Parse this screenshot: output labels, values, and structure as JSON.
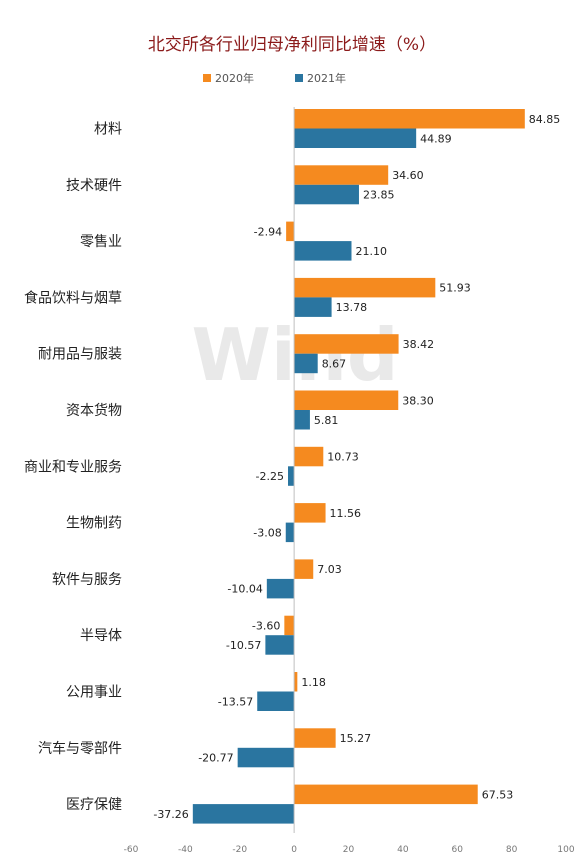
{
  "chart_data": {
    "type": "bar",
    "orientation": "horizontal",
    "title": "北交所各行业归母净利同比增速（%）",
    "watermark": "Wind",
    "legend_position": "top",
    "categories": [
      "材料",
      "技术硬件",
      "零售业",
      "食品饮料与烟草",
      "耐用品与服装",
      "资本货物",
      "商业和专业服务",
      "生物制药",
      "软件与服务",
      "半导体",
      "公用事业",
      "汽车与零部件",
      "医疗保健"
    ],
    "series": [
      {
        "name": "2020年",
        "color": "#f58a1f",
        "values": [
          84.85,
          34.6,
          -2.94,
          51.93,
          38.42,
          38.3,
          10.73,
          11.56,
          7.03,
          -3.6,
          1.18,
          15.27,
          67.53
        ],
        "labels": [
          "84.85",
          "34.60",
          "-2.94",
          "51.93",
          "38.42",
          "38.30",
          "10.73",
          "11.56",
          "7.03",
          "-3.60",
          "1.18",
          "15.27",
          "67.53"
        ]
      },
      {
        "name": "2021年",
        "color": "#2a75a0",
        "values": [
          44.89,
          23.85,
          21.1,
          13.78,
          8.67,
          5.81,
          -2.25,
          -3.08,
          -10.04,
          -10.57,
          -13.57,
          -20.77,
          -37.26
        ],
        "labels": [
          "44.89",
          "23.85",
          "21.10",
          "13.78",
          "8.67",
          "5.81",
          "-2.25",
          "-3.08",
          "-10.04",
          "-10.57",
          "-13.57",
          "-20.77",
          "-37.26"
        ]
      }
    ],
    "xlim": [
      -60,
      100
    ],
    "xticks": [
      -60,
      -40,
      -20,
      0,
      20,
      40,
      60,
      80,
      100
    ],
    "xtick_labels": [
      "-60",
      "-40",
      "-20",
      "0",
      "20",
      "40",
      "60",
      "80",
      "100"
    ],
    "grid": false
  }
}
